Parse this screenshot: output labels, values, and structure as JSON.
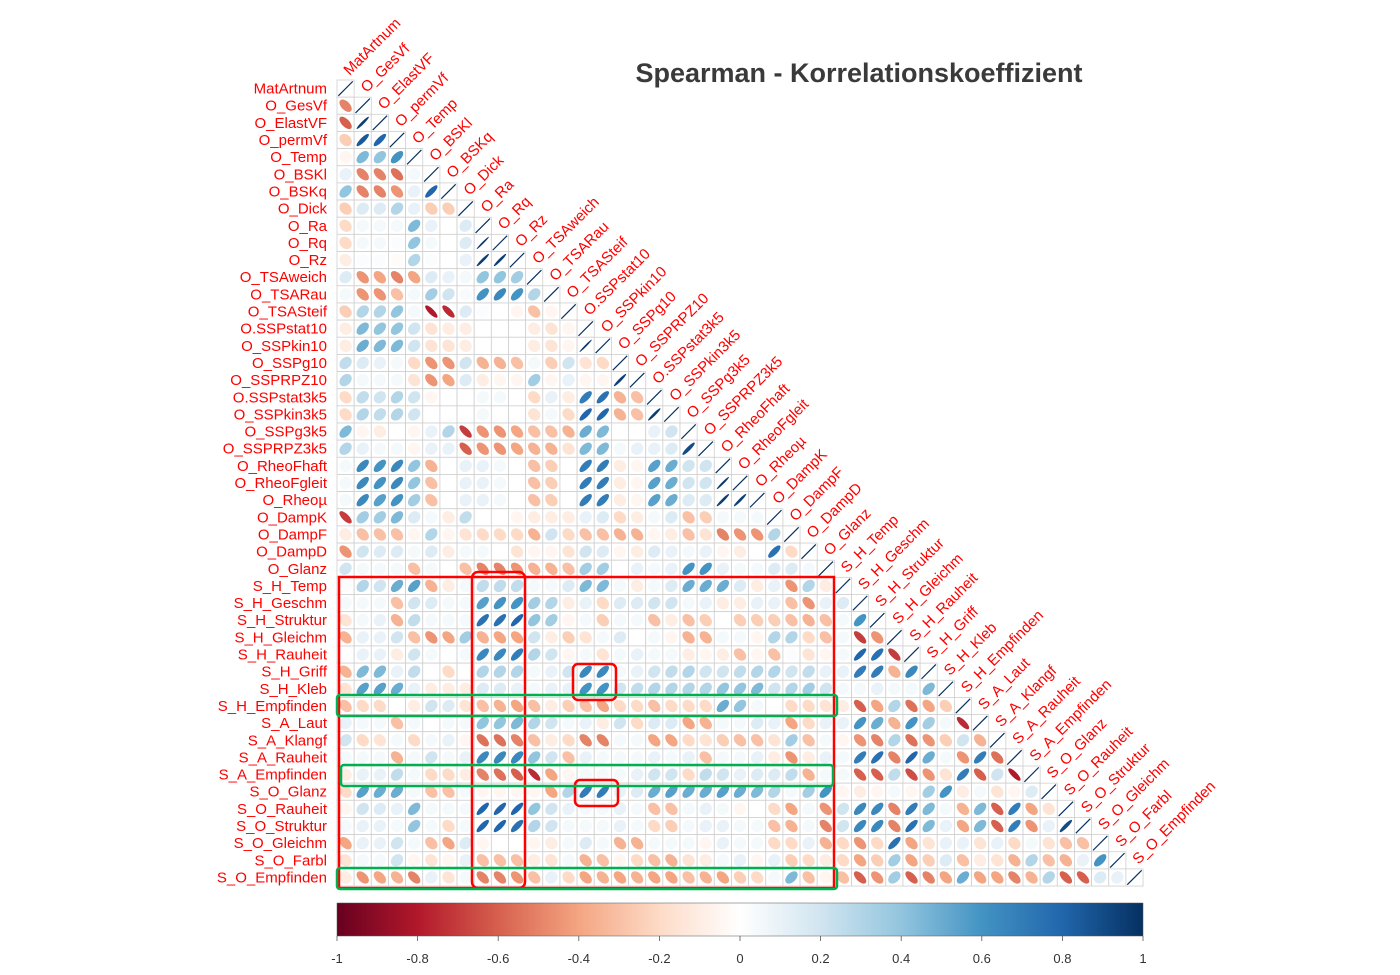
{
  "chart_data": {
    "type": "heatmap",
    "subtype": "correlation-matrix-lower-ellipse",
    "title": "Spearman - Korrelationskoeffizient",
    "variables": [
      "MatArtnum",
      "O_GesVf",
      "O_ElastVF",
      "O_permVf",
      "O_Temp",
      "O_BSKl",
      "O_BSKq",
      "O_Dick",
      "O_Ra",
      "O_Rq",
      "O_Rz",
      "O_TSAweich",
      "O_TSARau",
      "O_TSASteif",
      "O.SSPstat10",
      "O_SSPkin10",
      "O_SSPg10",
      "O_SSPRPZ10",
      "O.SSPstat3k5",
      "O_SSPkin3k5",
      "O_SSPg3k5",
      "O_SSPRPZ3k5",
      "O_RheoFhaft",
      "O_RheoFgleit",
      "O_Rheoµ",
      "O_DampK",
      "O_DampF",
      "O_DampD",
      "O_Glanz",
      "S_H_Temp",
      "S_H_Geschm",
      "S_H_Struktur",
      "S_H_Gleichm",
      "S_H_Rauheit",
      "S_H_Griff",
      "S_H_Kleb",
      "S_H_Empfinden",
      "S_A_Laut",
      "S_A_Klangf",
      "S_A_Rauheit",
      "S_A_Empfinden",
      "S_O_Glanz",
      "S_O_Rauheit",
      "S_O_Struktur",
      "S_O_Gleichm",
      "S_O_Farbl",
      "S_O_Empfinden"
    ],
    "lower_triangle": [
      [],
      [
        -0.5
      ],
      [
        -0.6,
        0.95
      ],
      [
        -0.25,
        0.85,
        0.8
      ],
      [
        -0.05,
        0.45,
        0.4,
        0.6
      ],
      [
        0.1,
        -0.5,
        -0.5,
        -0.55,
        0.05
      ],
      [
        0.4,
        -0.5,
        -0.5,
        -0.45,
        0.1,
        0.8
      ],
      [
        -0.25,
        0.15,
        0.15,
        0.3,
        0.1,
        -0.25,
        -0.25
      ],
      [
        -0.2,
        0.05,
        0.05,
        0.05,
        0.45,
        0.1,
        0,
        0.15
      ],
      [
        -0.2,
        0.05,
        0.05,
        0.02,
        0.4,
        0.05,
        0,
        0.15,
        0.98
      ],
      [
        -0.1,
        0.02,
        0.02,
        -0.02,
        0.3,
        0.02,
        0,
        0.1,
        0.95,
        0.95
      ],
      [
        0.15,
        -0.45,
        -0.4,
        -0.5,
        -0.4,
        0.15,
        0.1,
        0.05,
        0.4,
        0.4,
        0.35
      ],
      [
        0.05,
        -0.45,
        -0.45,
        -0.3,
        0.05,
        0.35,
        0.2,
        0.03,
        0.6,
        0.65,
        0.6,
        0.3
      ],
      [
        -0.25,
        0.3,
        0.3,
        0.4,
        0.05,
        -0.8,
        -0.75,
        0.15,
        0.02,
        0,
        -0.05,
        -0.3,
        -0.05
      ],
      [
        -0.1,
        0.45,
        0.4,
        0.4,
        0.2,
        -0.15,
        -0.1,
        -0.1,
        0,
        0,
        0,
        -0.1,
        -0.15,
        -0.05
      ],
      [
        -0.1,
        0.5,
        0.45,
        0.45,
        0.2,
        -0.15,
        -0.15,
        -0.1,
        0,
        0,
        0,
        -0.1,
        -0.15,
        -0.05,
        0.98
      ],
      [
        0.25,
        0.15,
        0.1,
        0.05,
        -0.2,
        -0.45,
        -0.45,
        0.2,
        -0.35,
        -0.35,
        -0.3,
        0.05,
        -0.25,
        0.2,
        -0.15,
        -0.2
      ],
      [
        0.3,
        0.05,
        0.05,
        0.05,
        -0.15,
        -0.45,
        -0.4,
        0.15,
        -0.1,
        -0.05,
        -0.05,
        0.35,
        -0.05,
        0.1,
        -0.05,
        -0.05,
        0.95
      ],
      [
        -0.2,
        0.25,
        0.2,
        0.3,
        0.2,
        -0.05,
        0,
        0,
        0.05,
        0.05,
        0,
        -0.2,
        0.1,
        -0.1,
        0.7,
        0.75,
        -0.35,
        -0.3
      ],
      [
        -0.2,
        0.3,
        0.25,
        0.3,
        0.2,
        0,
        0,
        0,
        0.05,
        0,
        0,
        -0.15,
        0.05,
        -0.2,
        0.8,
        0.8,
        -0.35,
        -0.3,
        0.95
      ],
      [
        0.45,
        -0.05,
        -0.1,
        0,
        -0.05,
        0.1,
        0.3,
        -0.7,
        -0.45,
        -0.45,
        -0.4,
        -0.3,
        -0.3,
        -0.35,
        0.5,
        0.45,
        0,
        0,
        0.1,
        0.2
      ],
      [
        0.3,
        0.1,
        0.05,
        0.05,
        -0.05,
        0.1,
        0.1,
        -0.6,
        -0.45,
        -0.45,
        -0.4,
        -0.35,
        -0.35,
        -0.15,
        0.45,
        0.45,
        0.05,
        0.1,
        0.1,
        0.15,
        0.9
      ],
      [
        0.05,
        0.65,
        0.6,
        0.65,
        0.4,
        -0.35,
        0,
        0.1,
        0.1,
        0.05,
        0,
        -0.3,
        -0.25,
        0,
        0.7,
        0.7,
        -0.1,
        -0.05,
        0.55,
        0.5,
        0.2,
        0.2
      ],
      [
        0.05,
        0.65,
        0.6,
        0.65,
        0.4,
        -0.3,
        0,
        0.1,
        0.1,
        0.05,
        0,
        -0.3,
        -0.25,
        0,
        0.7,
        0.7,
        -0.1,
        -0.05,
        0.55,
        0.5,
        0.2,
        0.2,
        0.97
      ],
      [
        0.05,
        0.65,
        0.55,
        0.6,
        0.35,
        -0.3,
        0,
        0.1,
        0.1,
        0.05,
        0,
        -0.3,
        -0.25,
        0,
        0.7,
        0.7,
        -0.1,
        -0.05,
        0.55,
        0.5,
        0.15,
        0.15,
        0.95,
        0.95
      ],
      [
        -0.7,
        0.35,
        0.35,
        0.45,
        0.15,
        0.05,
        -0.1,
        0.25,
        0,
        0,
        -0.05,
        -0.1,
        -0.1,
        -0.1,
        0.1,
        0.15,
        -0.2,
        -0.1,
        0.05,
        0.15,
        -0.3,
        -0.25,
        0.05,
        0.05,
        0.05
      ],
      [
        -0.1,
        -0.3,
        -0.3,
        -0.3,
        -0.05,
        0.3,
        -0.05,
        -0.15,
        -0.2,
        -0.2,
        -0.2,
        -0.35,
        0.2,
        -0.2,
        -0.3,
        -0.3,
        -0.35,
        -0.35,
        -0.05,
        -0.1,
        -0.3,
        -0.15,
        -0.5,
        -0.45,
        -0.45,
        0.3
      ],
      [
        -0.45,
        0.2,
        0.15,
        0.15,
        0.05,
        0.15,
        -0.1,
        0.05,
        0.05,
        0,
        -0.15,
        -0.05,
        -0.05,
        -0.15,
        0.2,
        0.15,
        -0.05,
        -0.1,
        0.15,
        0.1,
        0.05,
        0.1,
        -0.05,
        -0.1,
        0,
        0.75,
        -0.2
      ],
      [
        0.2,
        0.05,
        0.05,
        0.05,
        -0.3,
        0.05,
        0,
        -0.3,
        -0.5,
        -0.5,
        -0.45,
        -0.35,
        -0.35,
        -0.3,
        0.35,
        0.35,
        0,
        0.1,
        0.05,
        0.1,
        0.6,
        0.6,
        0.1,
        0.05,
        0.05,
        0.15,
        0.15,
        0.05
      ],
      [
        0.02,
        0.3,
        0.2,
        0.5,
        0.55,
        -0.35,
        -0.1,
        0.05,
        0.25,
        0.25,
        0.25,
        0.05,
        0.05,
        0.15,
        0.45,
        0.45,
        0.05,
        -0.1,
        0.05,
        0.15,
        0.5,
        0.5,
        0.5,
        0.15,
        -0.1,
        0.1,
        -0.45,
        0.3,
        -0.1
      ],
      [
        0.05,
        0.05,
        0.05,
        -0.3,
        0.2,
        0.15,
        0.05,
        0.05,
        0.55,
        0.6,
        0.6,
        0.35,
        0.3,
        -0.1,
        0.1,
        -0.2,
        0.15,
        0.15,
        0.2,
        0.2,
        0.05,
        0.1,
        -0.1,
        -0.1,
        0.1,
        0.1,
        -0.3,
        -0.45,
        0.1,
        0.15
      ],
      [
        -0.15,
        0.05,
        0.1,
        -0.35,
        0.25,
        0.05,
        0.05,
        0.05,
        0.75,
        0.75,
        0.8,
        0.4,
        0.35,
        -0.05,
        0.05,
        -0.25,
        0.05,
        0.05,
        -0.3,
        -0.1,
        -0.3,
        -0.25,
        0,
        -0.25,
        -0.25,
        -0.25,
        -0.3,
        -0.35,
        -0.3,
        0.05,
        0.6
      ],
      [
        -0.35,
        0.1,
        0.1,
        0.2,
        -0.3,
        -0.45,
        -0.4,
        0.35,
        -0.35,
        -0.4,
        -0.4,
        0.2,
        -0.1,
        -0.25,
        -0.15,
        0.05,
        0.15,
        0,
        0.05,
        -0.05,
        -0.35,
        -0.35,
        0.05,
        0.05,
        -0.05,
        0.3,
        0.3,
        -0.2,
        -0.3,
        0.05,
        -0.7,
        -0.45
      ],
      [
        0,
        0.1,
        0.1,
        -0.1,
        0.2,
        0.05,
        0,
        0.05,
        0.65,
        0.65,
        0.7,
        0.3,
        0.2,
        -0.05,
        0.05,
        -0.15,
        0.05,
        0.1,
        0.05,
        0.05,
        -0.1,
        -0.05,
        -0.1,
        -0.3,
        -0.05,
        -0.3,
        0.02,
        -0.15,
        -0.05,
        0.05,
        0.8,
        0.75,
        -0.7
      ],
      [
        -0.35,
        0.45,
        0.45,
        0.1,
        0.25,
        0,
        -0.2,
        0,
        0.3,
        0.3,
        0.3,
        0.05,
        0.1,
        0.2,
        0.65,
        0.65,
        0.05,
        0.1,
        0.2,
        0.25,
        0.3,
        0.2,
        0.2,
        0.25,
        0.3,
        0.3,
        0.2,
        0.25,
        0.1,
        0.1,
        0.7,
        0.7,
        -0.35,
        0.65
      ],
      [
        -0.15,
        0.55,
        0.55,
        0.5,
        0.1,
        -0.1,
        -0.1,
        -0.1,
        0.15,
        0.15,
        0.1,
        0.05,
        0.1,
        0.1,
        0.6,
        0.6,
        0.2,
        0.25,
        0.3,
        0.3,
        0.3,
        0.3,
        0.4,
        0.4,
        0.45,
        0.2,
        0.3,
        0.35,
        0.2,
        0.05,
        0.05,
        0.1,
        0.05,
        0.05,
        0.45
      ],
      [
        -0.3,
        -0.2,
        -0.2,
        0,
        -0.1,
        0.2,
        0.15,
        -0.15,
        -0.3,
        -0.35,
        -0.4,
        -0.3,
        -0.1,
        -0.25,
        -0.3,
        -0.4,
        -0.2,
        -0.2,
        -0.3,
        -0.2,
        -0.2,
        -0.2,
        0.5,
        0.4,
        0.05,
        0,
        -0.2,
        -0.2,
        -0.15,
        -0.1,
        -0.6,
        -0.4,
        0.3,
        -0.55,
        -0.4,
        -0.25
      ],
      [
        0.1,
        0.05,
        0.05,
        -0.3,
        0.05,
        0,
        0.05,
        0.05,
        0.4,
        0.4,
        0.45,
        0.3,
        0.2,
        0.05,
        0.1,
        -0.1,
        0.2,
        -0.2,
        0.15,
        0.15,
        -0.4,
        -0.35,
        0.05,
        0.05,
        0.15,
        0.1,
        -0.4,
        -0.2,
        0.1,
        0.1,
        0.6,
        0.5,
        -0.35,
        0.6,
        0.35,
        0.05,
        -0.75
      ],
      [
        0.2,
        -0.2,
        -0.15,
        0.05,
        -0.2,
        0.05,
        0.1,
        -0.05,
        -0.55,
        -0.55,
        -0.5,
        -0.3,
        -0.1,
        -0.2,
        -0.5,
        -0.5,
        0.05,
        0.05,
        -0.4,
        -0.4,
        -0.2,
        -0.15,
        -0.25,
        -0.3,
        -0.3,
        -0.15,
        0.35,
        -0.3,
        0.05,
        -0.05,
        -0.45,
        -0.5,
        0.3,
        -0.55,
        -0.45,
        -0.25,
        0.2,
        -0.35
      ],
      [
        0.05,
        0.05,
        0.05,
        -0.35,
        0.05,
        0.2,
        0.05,
        0.1,
        0.65,
        0.65,
        0.65,
        0.4,
        0.2,
        -0.3,
        0.1,
        0.05,
        0.05,
        0.05,
        0.1,
        0.05,
        0.1,
        -0.3,
        0.05,
        0.05,
        0.1,
        -0.1,
        -0.45,
        -0.1,
        0.1,
        0.05,
        0.7,
        0.75,
        -0.5,
        0.8,
        0.5,
        0.05,
        -0.45,
        0.7,
        -0.55
      ],
      [
        -0.1,
        0.1,
        0.1,
        0.25,
        0.05,
        -0.2,
        -0.2,
        -0.1,
        -0.5,
        -0.55,
        -0.6,
        -0.75,
        -0.4,
        -0.05,
        0.05,
        0.05,
        0.05,
        0.1,
        0.2,
        0.2,
        -0.2,
        0.25,
        0.2,
        0.1,
        0.15,
        0.15,
        0.25,
        -0.35,
        0.05,
        0.05,
        -0.6,
        -0.6,
        0.25,
        -0.65,
        -0.45,
        -0.15,
        0.7,
        -0.6,
        0.2,
        -0.8
      ],
      [
        -0.2,
        0.55,
        0.5,
        0.5,
        0.05,
        -0.3,
        -0.3,
        0.05,
        -0.05,
        -0.05,
        -0.05,
        -0.05,
        -0.4,
        0.3,
        0.7,
        0.7,
        0.1,
        0.15,
        0.5,
        0.55,
        0.5,
        0.5,
        0.55,
        0.5,
        0.45,
        0.3,
        0.05,
        0.35,
        0.6,
        -0.05,
        -0.1,
        -0.05,
        0.05,
        -0.05,
        0.35,
        0.6,
        -0.1,
        0.05,
        -0.15,
        -0.05,
        0.15
      ],
      [
        -0.05,
        0.2,
        0.15,
        0.1,
        0.45,
        0.05,
        0.05,
        0.05,
        0.8,
        0.8,
        0.8,
        0.4,
        0.2,
        0.1,
        0.05,
        0.05,
        0.1,
        0.05,
        -0.3,
        -0.3,
        0.05,
        0.1,
        0.05,
        -0.05,
        0,
        -0.2,
        -0.4,
        0.05,
        -0.45,
        0.2,
        0.65,
        0.65,
        -0.5,
        0.7,
        0.45,
        0.05,
        -0.35,
        0.45,
        -0.6,
        0.7,
        -0.4,
        -0.15
      ],
      [
        0.05,
        0.1,
        0.1,
        0.05,
        0.4,
        0.05,
        -0.2,
        0.05,
        0.8,
        0.8,
        0.75,
        0.3,
        0.2,
        0.05,
        0.05,
        0.05,
        0.1,
        0.05,
        -0.2,
        -0.25,
        0.05,
        0.1,
        0.1,
        0.05,
        0.05,
        -0.3,
        -0.35,
        0.05,
        -0.5,
        0.2,
        0.65,
        0.65,
        -0.5,
        0.75,
        0.45,
        0.1,
        -0.4,
        0.45,
        -0.6,
        0.7,
        -0.45,
        0.1,
        0.9
      ],
      [
        -0.4,
        0.1,
        0.1,
        0.2,
        0.05,
        -0.3,
        -0.4,
        0.15,
        -0.05,
        0,
        0,
        -0.05,
        -0.1,
        0.05,
        0.15,
        0.05,
        -0.35,
        -0.35,
        0.05,
        0.05,
        0.05,
        -0.05,
        0.1,
        0.05,
        0.05,
        -0.2,
        -0.2,
        0.1,
        -0.35,
        -0.2,
        -0.45,
        -0.2,
        0.75,
        -0.4,
        -0.15,
        0.1,
        0.1,
        -0.15,
        0.1,
        -0.2,
        0.05,
        -0.15,
        -0.3,
        -0.3
      ],
      [
        -0.15,
        0.05,
        0.05,
        0.2,
        -0.05,
        -0.15,
        -0.05,
        0.1,
        -0.3,
        -0.3,
        -0.3,
        -0.1,
        -0.15,
        0.05,
        -0.35,
        -0.3,
        -0.05,
        -0.2,
        -0.3,
        -0.35,
        -0.15,
        -0.1,
        0.05,
        0.1,
        -0.05,
        0.1,
        -0.25,
        -0.2,
        -0.1,
        -0.2,
        -0.4,
        -0.25,
        0.35,
        -0.4,
        -0.25,
        0.15,
        -0.3,
        -0.1,
        -0.15,
        -0.35,
        0.3,
        -0.3,
        -0.35,
        0.1,
        0.6
      ],
      [
        -0.1,
        -0.45,
        -0.4,
        -0.35,
        -0.5,
        0.1,
        -0.15,
        0.05,
        -0.5,
        -0.5,
        -0.45,
        -0.3,
        0.1,
        -0.2,
        -0.4,
        -0.35,
        -0.4,
        -0.35,
        -0.4,
        -0.4,
        -0.3,
        -0.35,
        -0.4,
        -0.25,
        -0.2,
        0.05,
        0.45,
        -0.3,
        -0.05,
        -0.3,
        -0.6,
        -0.45,
        0.35,
        -0.6,
        -0.5,
        -0.4,
        0.5,
        -0.4,
        -0.4,
        -0.5,
        -0.35,
        0.3,
        -0.6,
        -0.6,
        0.15,
        0.1
      ]
    ],
    "diagonal": 1,
    "colorbar": {
      "range": [
        -1,
        1
      ],
      "ticks": [
        "-1",
        "-0.8",
        "-0.6",
        "-0.4",
        "-0.2",
        "0",
        "0.2",
        "0.4",
        "0.6",
        "0.8",
        "1"
      ],
      "palette": [
        "#67001F",
        "#B2182B",
        "#D6604D",
        "#F4A582",
        "#FDDBC7",
        "#FFFFFF",
        "#D1E5F0",
        "#92C5DE",
        "#4393C3",
        "#2166AC",
        "#053061"
      ],
      "placement": "bottom"
    },
    "label_color": "#FF0000",
    "highlight_colors": {
      "red": "#FF0000",
      "green": "#00B050"
    }
  }
}
